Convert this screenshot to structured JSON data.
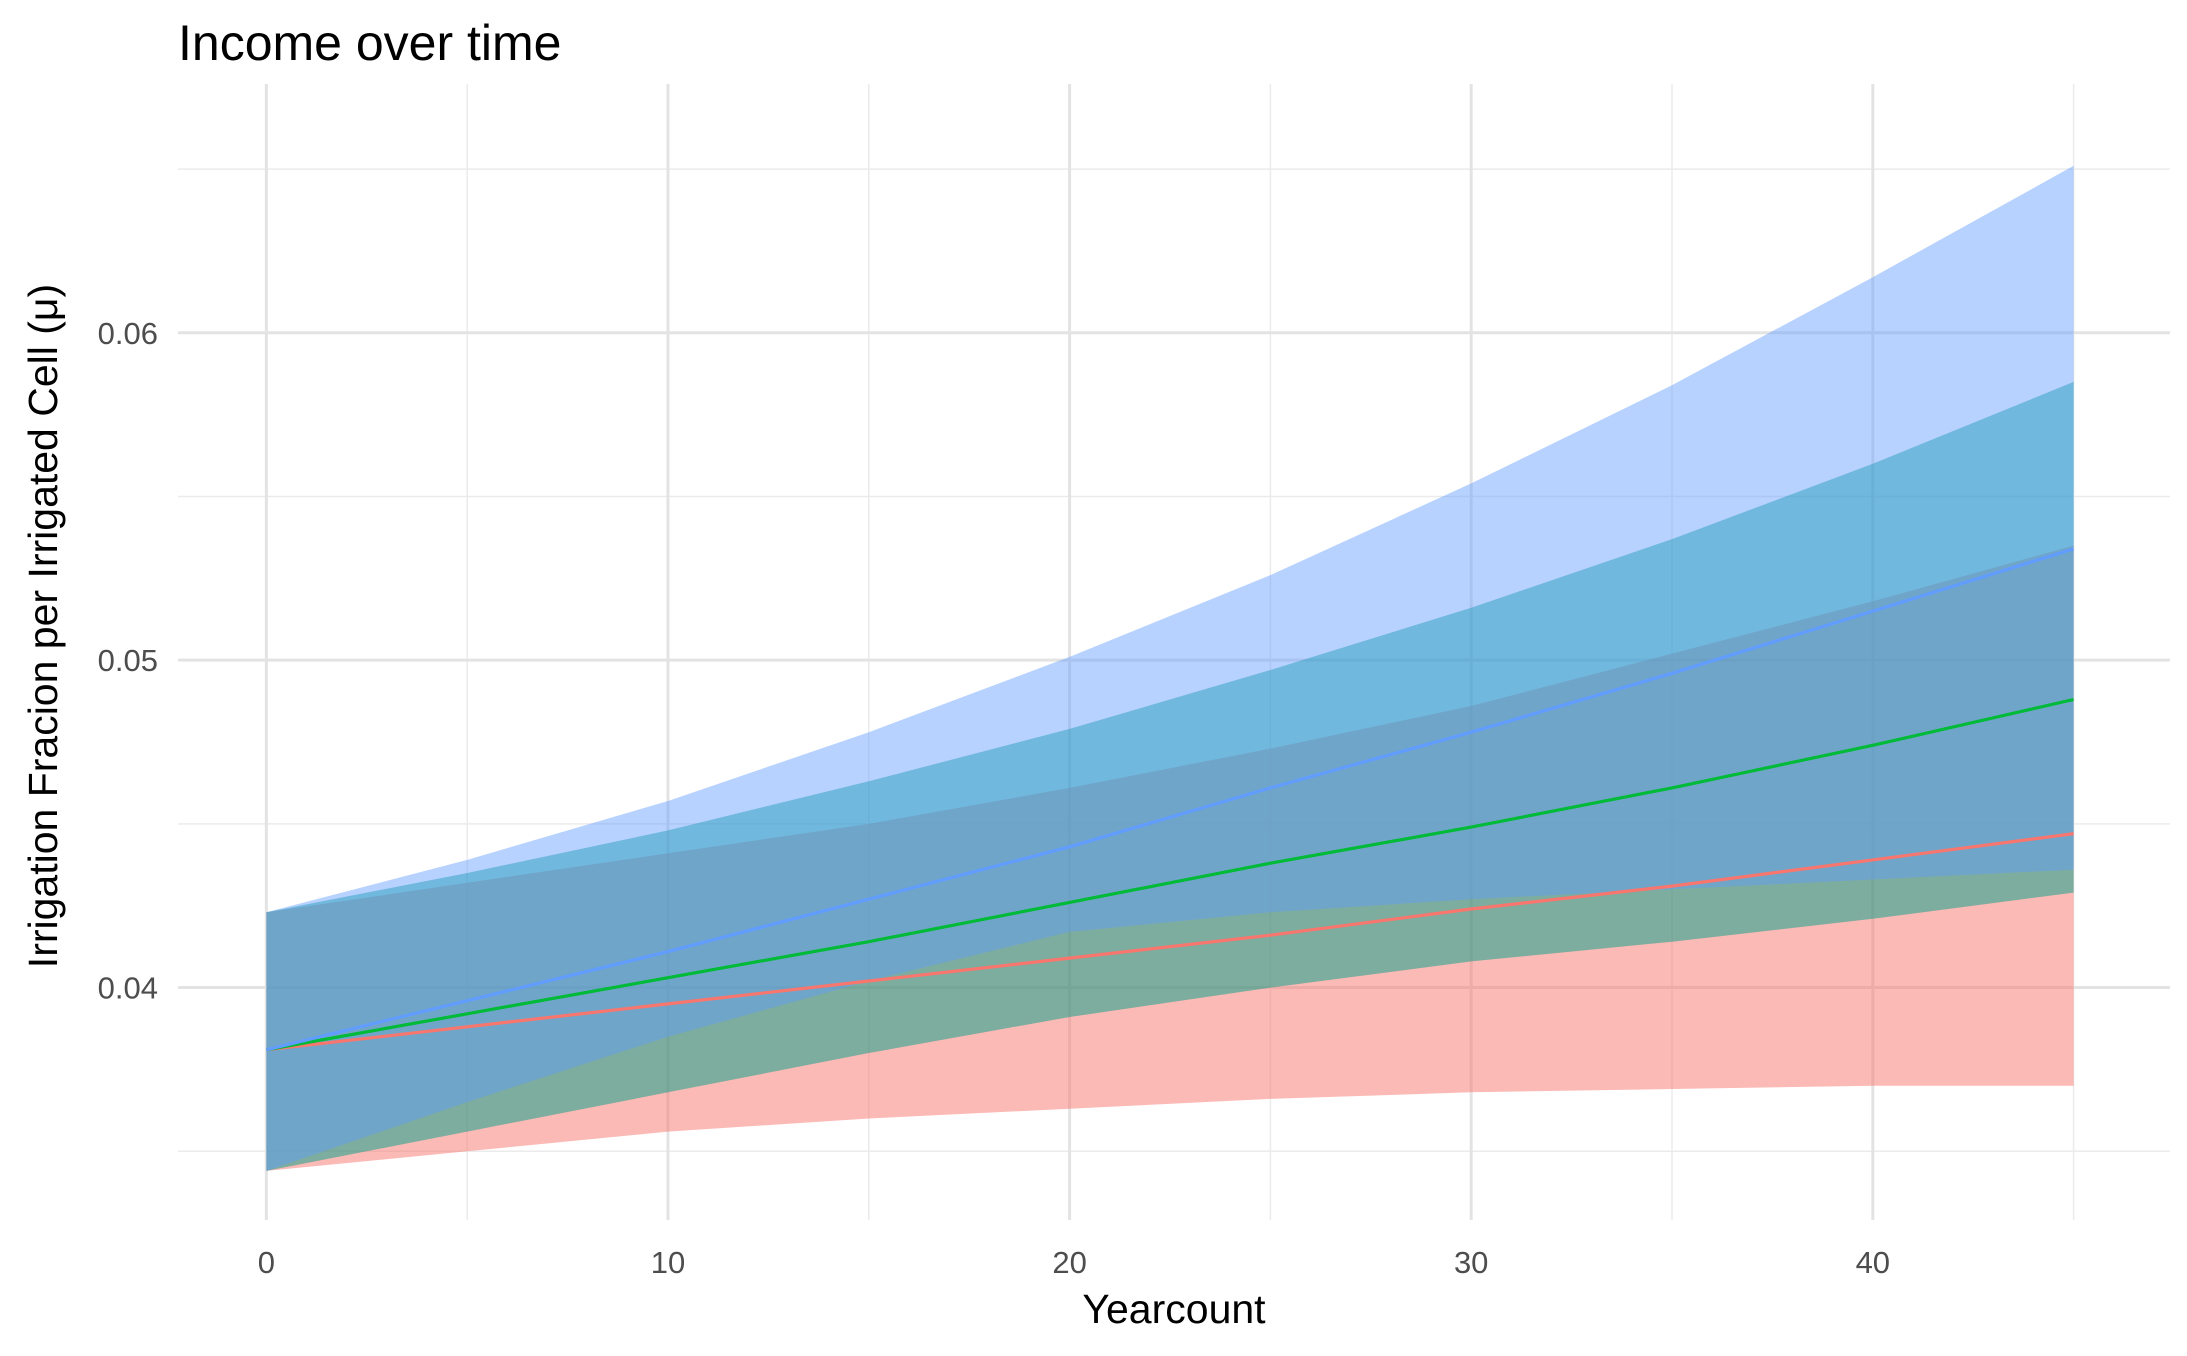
{
  "chart_data": {
    "type": "area",
    "title": "Income over time",
    "xlabel": "Yearcount",
    "ylabel": "Irrigation Fracion per Irrigated Cell (μ)",
    "xlim": [
      -2.2,
      47.4
    ],
    "ylim": [
      0.0329,
      0.0676
    ],
    "x_ticks": [
      0,
      10,
      20,
      30,
      40
    ],
    "x_tick_labels": [
      "0",
      "10",
      "20",
      "30",
      "40"
    ],
    "y_ticks": [
      0.04,
      0.05,
      0.06
    ],
    "y_tick_labels": [
      "0.04",
      "0.05",
      "0.06"
    ],
    "grid": true,
    "legend": "none",
    "x": [
      0,
      5,
      10,
      15,
      20,
      25,
      30,
      35,
      40,
      45
    ],
    "series": [
      {
        "color": "#f8766d",
        "band_color": "#f8766d",
        "band_opacity": 0.5,
        "line": [
          0.0381,
          0.0388,
          0.0395,
          0.0402,
          0.0409,
          0.0416,
          0.0424,
          0.0431,
          0.0439,
          0.0447
        ],
        "lower": [
          0.0344,
          0.035,
          0.0356,
          0.036,
          0.0363,
          0.0366,
          0.0368,
          0.0369,
          0.037,
          0.037
        ],
        "upper": [
          0.0423,
          0.0432,
          0.0441,
          0.045,
          0.0461,
          0.0473,
          0.0486,
          0.0502,
          0.0518,
          0.0535
        ]
      },
      {
        "color": "#00ba38",
        "band_color": "#00a087",
        "band_opacity": 0.5,
        "line": [
          0.0381,
          0.0392,
          0.0403,
          0.0414,
          0.0426,
          0.0438,
          0.0449,
          0.0461,
          0.0474,
          0.0488
        ],
        "lower": [
          0.0344,
          0.0356,
          0.0368,
          0.038,
          0.0391,
          0.04,
          0.0408,
          0.0414,
          0.0421,
          0.0429
        ],
        "upper": [
          0.0423,
          0.0435,
          0.0448,
          0.0463,
          0.0479,
          0.0497,
          0.0516,
          0.0537,
          0.056,
          0.0585
        ]
      },
      {
        "color": "#619cff",
        "band_color": "#619cff",
        "band_opacity": 0.45,
        "line": [
          0.0381,
          0.0396,
          0.0411,
          0.0427,
          0.0443,
          0.0461,
          0.0478,
          0.0496,
          0.0515,
          0.0534
        ],
        "lower": [
          0.0344,
          0.0365,
          0.0385,
          0.0402,
          0.0417,
          0.0423,
          0.0427,
          0.043,
          0.0433,
          0.0436
        ],
        "upper": [
          0.0423,
          0.0439,
          0.0457,
          0.0478,
          0.0501,
          0.0526,
          0.0554,
          0.0584,
          0.0617,
          0.0651
        ]
      }
    ]
  }
}
